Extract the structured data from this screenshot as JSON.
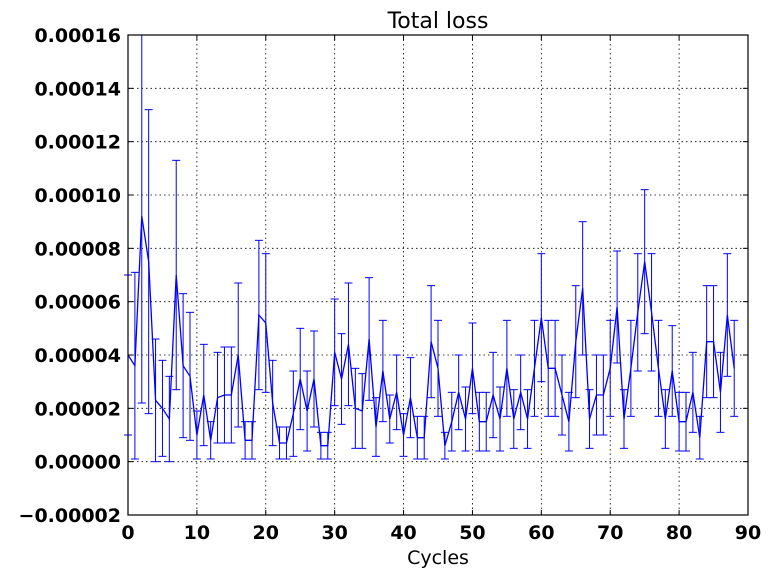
{
  "chart_data": {
    "type": "line",
    "title": "Total loss",
    "xlabel": "Cycles",
    "ylabel": "",
    "xlim": [
      0,
      90
    ],
    "ylim": [
      -2e-05,
      0.00016
    ],
    "xticks": [
      0,
      10,
      20,
      30,
      40,
      50,
      60,
      70,
      80,
      90
    ],
    "xtick_labels": [
      "0",
      "10",
      "20",
      "30",
      "40",
      "50",
      "60",
      "70",
      "80",
      "90"
    ],
    "yticks": [
      -2e-05,
      0,
      2e-05,
      4e-05,
      6e-05,
      8e-05,
      0.0001,
      0.00012,
      0.00014,
      0.00016
    ],
    "ytick_labels": [
      "−0.00002",
      "0.00000",
      "0.00002",
      "0.00004",
      "0.00006",
      "0.00008",
      "0.00010",
      "0.00012",
      "0.00014",
      "0.00016"
    ],
    "grid": true,
    "line_color": "#0000ff",
    "series": [
      {
        "x": [
          0,
          1,
          2,
          3,
          4,
          5,
          6,
          7,
          8,
          9,
          10,
          11,
          12,
          13,
          14,
          15,
          16,
          17,
          18,
          19,
          20,
          21,
          22,
          23,
          24,
          25,
          26,
          27,
          28,
          29,
          30,
          31,
          32,
          33,
          34,
          35,
          36,
          37,
          38,
          39,
          40,
          41,
          42,
          43,
          44,
          45,
          46,
          47,
          48,
          49,
          50,
          51,
          52,
          53,
          54,
          55,
          56,
          57,
          58,
          59,
          60,
          61,
          62,
          63,
          64,
          65,
          66,
          67,
          68,
          69,
          70,
          71,
          72,
          73,
          74,
          75,
          76,
          77,
          78,
          79,
          80,
          81,
          82,
          83,
          84,
          85,
          86,
          87,
          88
        ],
        "values": [
          4e-05,
          3.6e-05,
          9.2e-05,
          7.5e-05,
          2.3e-05,
          2e-05,
          1.6e-05,
          7e-05,
          3.6e-05,
          3.2e-05,
          1e-05,
          2.5e-05,
          8e-06,
          2.4e-05,
          2.5e-05,
          2.5e-05,
          4e-05,
          8e-06,
          8e-06,
          5.5e-05,
          5.2e-05,
          2.2e-05,
          7e-06,
          7e-06,
          1.8e-05,
          3.1e-05,
          1.9e-05,
          3.1e-05,
          6e-06,
          6e-06,
          4.1e-05,
          3.1e-05,
          4.4e-05,
          2e-05,
          1.9e-05,
          4.6e-05,
          1.3e-05,
          3.4e-05,
          1.6e-05,
          2.6e-05,
          1e-05,
          2.4e-05,
          9e-06,
          9e-06,
          4.5e-05,
          3.5e-05,
          6e-06,
          1.5e-05,
          2.6e-05,
          1.6e-05,
          3.5e-05,
          1.5e-05,
          1.5e-05,
          2.5e-05,
          1.6e-05,
          3.5e-05,
          1.6e-05,
          2.6e-05,
          1.6e-05,
          3.5e-05,
          5.4e-05,
          3.5e-05,
          3.5e-05,
          2.5e-05,
          1.5e-05,
          4.5e-05,
          6.5e-05,
          1.6e-05,
          2.5e-05,
          2.5e-05,
          3.5e-05,
          5.8e-05,
          1.6e-05,
          3.5e-05,
          5.6e-05,
          7.5e-05,
          5.6e-05,
          3.5e-05,
          1.6e-05,
          3.4e-05,
          1.5e-05,
          1.5e-05,
          2.6e-05,
          9e-06,
          4.5e-05,
          4.5e-05,
          2.6e-05,
          5.5e-05,
          3.5e-05
        ],
        "errors": [
          3e-05,
          3.5e-05,
          7e-05,
          5.7e-05,
          2.3e-05,
          1.8e-05,
          1.6e-05,
          4.3e-05,
          2.7e-05,
          2.4e-05,
          9e-06,
          1.9e-05,
          7e-06,
          1.7e-05,
          1.8e-05,
          1.8e-05,
          2.7e-05,
          7e-06,
          7e-06,
          2.8e-05,
          2.6e-05,
          1.6e-05,
          6e-06,
          6e-06,
          1.6e-05,
          1.9e-05,
          1.5e-05,
          1.8e-05,
          5e-06,
          5e-06,
          2e-05,
          1.7e-05,
          2.3e-05,
          1.5e-05,
          1.4e-05,
          2.3e-05,
          1.1e-05,
          1.9e-05,
          9e-06,
          1.4e-05,
          8e-06,
          1.5e-05,
          8e-06,
          8e-06,
          2.1e-05,
          1.8e-05,
          5e-06,
          1.1e-05,
          1.4e-05,
          1.2e-05,
          1.7e-05,
          1.1e-05,
          1.1e-05,
          1.6e-05,
          1.2e-05,
          1.8e-05,
          1.1e-05,
          1.4e-05,
          1.1e-05,
          1.8e-05,
          2.4e-05,
          1.8e-05,
          1.8e-05,
          1.5e-05,
          1.1e-05,
          2.1e-05,
          2.5e-05,
          1.1e-05,
          1.5e-05,
          1.5e-05,
          1.8e-05,
          2.1e-05,
          1.1e-05,
          1.8e-05,
          2.2e-05,
          2.7e-05,
          2.2e-05,
          1.8e-05,
          1.1e-05,
          1.7e-05,
          1.1e-05,
          1.1e-05,
          1.5e-05,
          8e-06,
          2.1e-05,
          2.1e-05,
          1.5e-05,
          2.3e-05,
          1.8e-05
        ]
      }
    ]
  }
}
